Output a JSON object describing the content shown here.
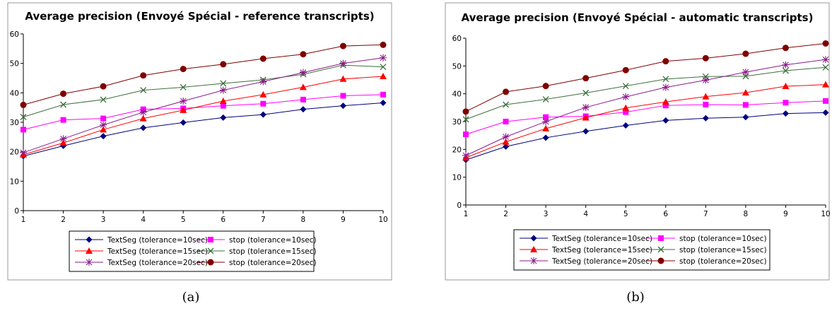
{
  "chart_data": [
    {
      "type": "line",
      "title": "Average precision (Envoyé Spécial - reference transcripts)",
      "caption": "(a)",
      "x": [
        1,
        2,
        3,
        4,
        5,
        6,
        7,
        8,
        9,
        10
      ],
      "xlim": [
        1,
        10
      ],
      "ylim": [
        0,
        60
      ],
      "yticks": [
        0,
        10,
        20,
        30,
        40,
        50,
        60
      ],
      "grid": false,
      "legend_position": "bottom",
      "series": [
        {
          "name": "TextSeg (tolerance=10sec)",
          "color": "#00007f",
          "marker": "diamond",
          "values": [
            18.5,
            22,
            25.3,
            28.1,
            29.9,
            31.6,
            32.6,
            34.4,
            35.6,
            36.6
          ]
        },
        {
          "name": "stop (tolerance=10sec)",
          "color": "#ff00ff",
          "marker": "square",
          "values": [
            27.5,
            30.8,
            31.3,
            34.4,
            34.7,
            35.6,
            36.3,
            37.7,
            39,
            39.4
          ]
        },
        {
          "name": "TextSeg (tolerance=15sec)",
          "color": "#ff0000",
          "marker": "triangle",
          "values": [
            19,
            23,
            27.5,
            31.3,
            34.1,
            37.2,
            39.4,
            41.9,
            44.7,
            45.6
          ]
        },
        {
          "name": "stop (tolerance=15sec)",
          "color": "#3c6f3c",
          "marker": "x",
          "values": [
            31.8,
            36,
            37.7,
            40.9,
            41.9,
            43.2,
            44.4,
            46.3,
            49.4,
            48.8
          ]
        },
        {
          "name": "TextSeg (tolerance=20sec)",
          "color": "#8b1a8b",
          "marker": "star",
          "values": [
            19.7,
            24.4,
            29.1,
            33.4,
            37.2,
            40.9,
            43.8,
            46.9,
            50,
            51.9
          ]
        },
        {
          "name": "stop (tolerance=20sec)",
          "color": "#800000",
          "marker": "circle",
          "values": [
            35.9,
            39.7,
            42.2,
            45.9,
            48.1,
            49.7,
            51.6,
            53.1,
            55.9,
            56.3
          ]
        }
      ]
    },
    {
      "type": "line",
      "title": "Average precision (Envoyé Spécial - automatic transcripts)",
      "caption": "(b)",
      "x": [
        1,
        2,
        3,
        4,
        5,
        6,
        7,
        8,
        9,
        10
      ],
      "xlim": [
        1,
        10
      ],
      "ylim": [
        0,
        60
      ],
      "yticks": [
        0,
        10,
        20,
        30,
        40,
        50,
        60
      ],
      "grid": false,
      "legend_position": "bottom",
      "series": [
        {
          "name": "TextSeg (tolerance=10sec)",
          "color": "#00007f",
          "marker": "diamond",
          "values": [
            16.2,
            21,
            24.2,
            26.5,
            28.6,
            30.4,
            31.2,
            31.6,
            32.9,
            33.2
          ]
        },
        {
          "name": "stop (tolerance=10sec)",
          "color": "#ff00ff",
          "marker": "square",
          "values": [
            25.4,
            30,
            31.6,
            31.9,
            33.4,
            35.8,
            36.1,
            36,
            36.8,
            37.4
          ]
        },
        {
          "name": "TextSeg (tolerance=15sec)",
          "color": "#ff0000",
          "marker": "triangle",
          "values": [
            17,
            22.7,
            27.5,
            31.4,
            34.9,
            37.1,
            39,
            40.4,
            42.7,
            43.3
          ]
        },
        {
          "name": "stop (tolerance=15sec)",
          "color": "#3c6f3c",
          "marker": "x",
          "values": [
            30.8,
            36.1,
            38,
            40.3,
            42.8,
            45.3,
            46.2,
            46.3,
            48.3,
            49.5
          ]
        },
        {
          "name": "TextSeg (tolerance=20sec)",
          "color": "#8b1a8b",
          "marker": "star",
          "values": [
            17.8,
            24.5,
            30,
            35.1,
            38.9,
            42.3,
            44.9,
            47.8,
            50.4,
            52.3
          ]
        },
        {
          "name": "stop (tolerance=20sec)",
          "color": "#800000",
          "marker": "circle",
          "values": [
            33.6,
            40.7,
            42.8,
            45.6,
            48.5,
            51.7,
            52.8,
            54.4,
            56.5,
            58.1
          ]
        }
      ]
    }
  ]
}
